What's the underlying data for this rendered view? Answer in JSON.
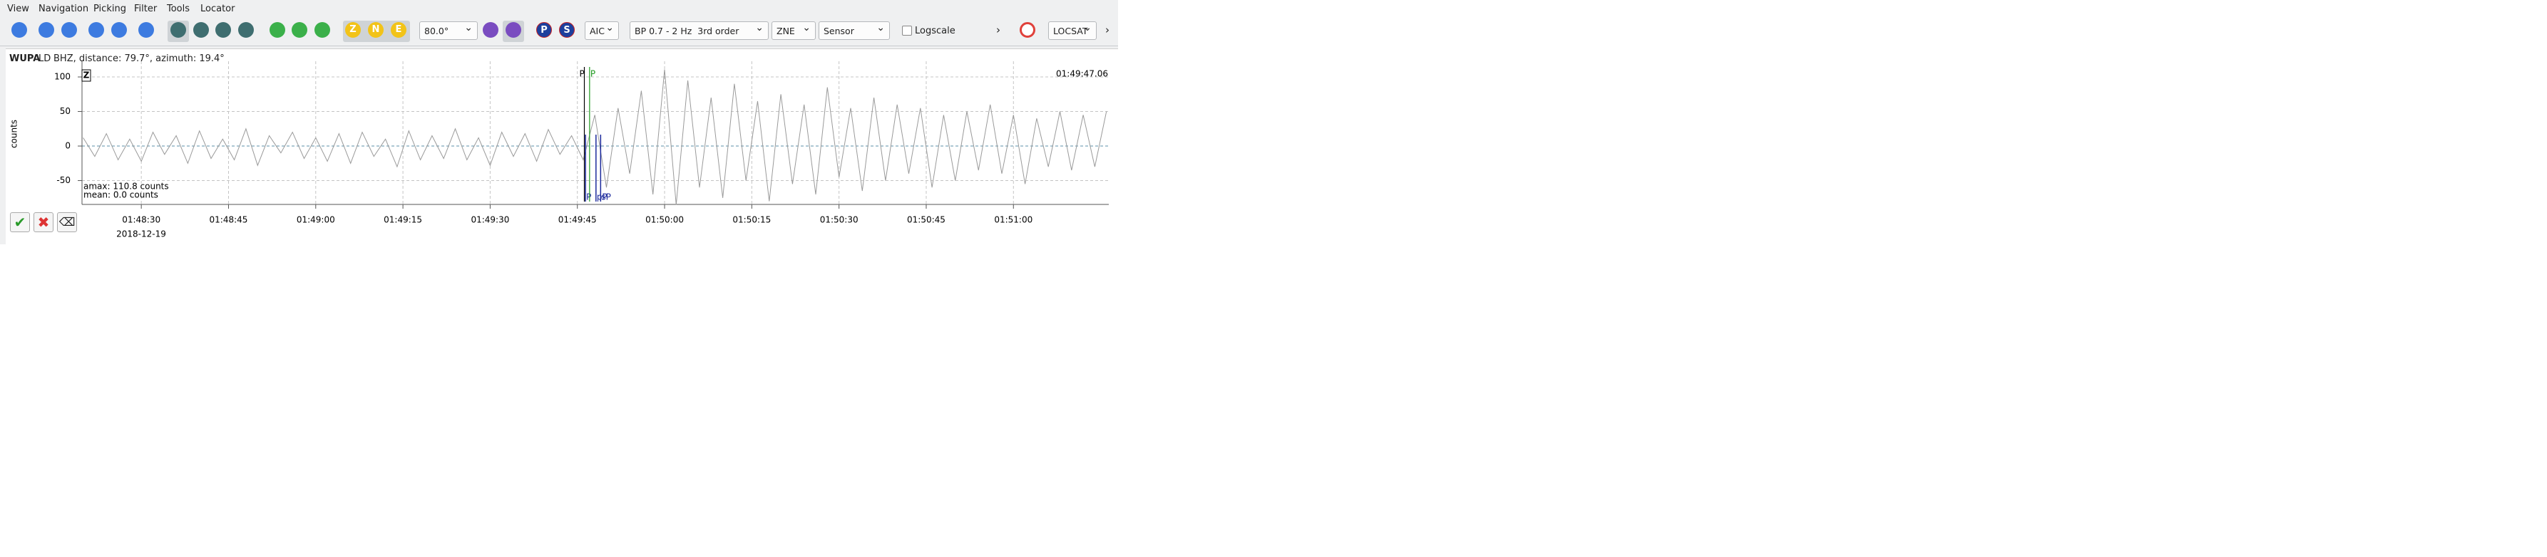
{
  "menu": [
    "View",
    "Navigation",
    "Picking",
    "Filter",
    "Tools",
    "Locator"
  ],
  "toolbar": {
    "components": [
      "Z",
      "N",
      "E"
    ],
    "angle": "80.0°",
    "phases": [
      "P",
      "S"
    ],
    "picker": "AIC",
    "filter": "BP 0.7 - 2 Hz  3rd order",
    "rotation": "ZNE",
    "unit": "Sensor",
    "logscale": "Logscale",
    "locator": "LOCSAT"
  },
  "trace": {
    "station": "WUPA",
    "network": "LD",
    "info": "BHZ, distance: 79.7°, azimuth: 19.4°",
    "component": "Z",
    "time": "01:49:47.06",
    "stats": [
      "amax: 110.8 counts",
      "mean: 0.0 counts"
    ],
    "date": "2018-12-19"
  },
  "chart_data": {
    "type": "line",
    "ylabel": "counts",
    "color": "#9a9a9a",
    "grid": true,
    "xlim": [
      6499.8,
      6676.4
    ],
    "ylim": [
      -84.5,
      112.4
    ],
    "xticks": [
      {
        "value": 6510,
        "label": "01:48:30"
      },
      {
        "value": 6525,
        "label": "01:48:45"
      },
      {
        "value": 6540,
        "label": "01:49:00"
      },
      {
        "value": 6555,
        "label": "01:49:15"
      },
      {
        "value": 6570,
        "label": "01:49:30"
      },
      {
        "value": 6585,
        "label": "01:49:45"
      },
      {
        "value": 6600,
        "label": "01:50:00"
      },
      {
        "value": 6615,
        "label": "01:50:15"
      },
      {
        "value": 6630,
        "label": "01:50:30"
      },
      {
        "value": 6645,
        "label": "01:50:45"
      },
      {
        "value": 6660,
        "label": "01:51:00"
      }
    ],
    "yticks": [
      -50,
      0,
      50,
      100
    ],
    "x": [
      6500,
      6502,
      6504,
      6506,
      6508,
      6510,
      6512,
      6514,
      6516,
      6518,
      6520,
      6522,
      6524,
      6526,
      6528,
      6530,
      6532,
      6534,
      6536,
      6538,
      6540,
      6542,
      6544,
      6546,
      6548,
      6550,
      6552,
      6554,
      6556,
      6558,
      6560,
      6562,
      6564,
      6566,
      6568,
      6570,
      6572,
      6574,
      6576,
      6578,
      6580,
      6582,
      6584,
      6586,
      6588,
      6590,
      6592,
      6594,
      6596,
      6598,
      6600,
      6602,
      6604,
      6606,
      6608,
      6610,
      6612,
      6614,
      6616,
      6618,
      6620,
      6622,
      6624,
      6626,
      6628,
      6630,
      6632,
      6634,
      6636,
      6638,
      6640,
      6642,
      6644,
      6646,
      6648,
      6650,
      6652,
      6654,
      6656,
      6658,
      6660,
      6662,
      6664,
      6666,
      6668,
      6670,
      6672,
      6674,
      6676
    ],
    "values": [
      12,
      -15,
      18,
      -20,
      10,
      -22,
      20,
      -12,
      15,
      -25,
      22,
      -18,
      10,
      -20,
      25,
      -28,
      15,
      -10,
      20,
      -18,
      12,
      -22,
      18,
      -25,
      20,
      -15,
      10,
      -30,
      22,
      -20,
      15,
      -18,
      25,
      -20,
      12,
      -28,
      20,
      -15,
      18,
      -22,
      24,
      -12,
      15,
      -20,
      45,
      -60,
      55,
      -40,
      80,
      -70,
      110.8,
      -85,
      95,
      -60,
      70,
      -75,
      90,
      -50,
      65,
      -80,
      75,
      -55,
      60,
      -70,
      85,
      -45,
      55,
      -65,
      70,
      -50,
      60,
      -40,
      55,
      -60,
      45,
      -50,
      50,
      -35,
      60,
      -40,
      45,
      -55,
      40,
      -30,
      50,
      -35,
      45,
      -30,
      50
    ],
    "picks": [
      {
        "label": "P",
        "x": 6586.2,
        "color": "#000000"
      },
      {
        "label": "P",
        "x": 6587.1,
        "color": "#1f9a1f"
      }
    ],
    "theoretical": [
      {
        "label": "P",
        "x": 6586.4
      },
      {
        "label": "pP",
        "x": 6588.2
      },
      {
        "label": "sP",
        "x": 6589.0
      }
    ],
    "theoretical_color": "#1c2a9c"
  }
}
